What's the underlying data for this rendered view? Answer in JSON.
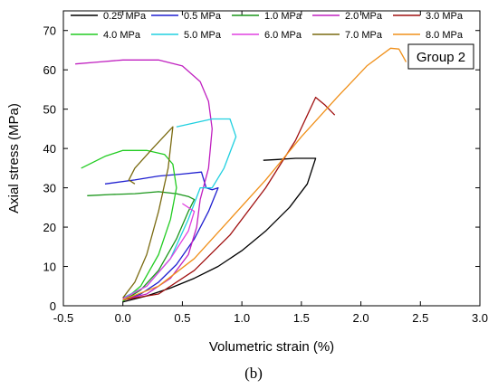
{
  "chart_data": {
    "type": "line",
    "xlabel": "Volumetric strain (%)",
    "ylabel": "Axial stress (MPa)",
    "xlim": [
      -0.5,
      3.0
    ],
    "ylim": [
      0,
      75
    ],
    "xticks": [
      "-0.5",
      "0.0",
      "0.5",
      "1.0",
      "1.5",
      "2.0",
      "2.5",
      "3.0"
    ],
    "yticks": [
      "0",
      "10",
      "20",
      "30",
      "40",
      "50",
      "60",
      "70"
    ],
    "annotation": "Group 2",
    "caption": "(b)",
    "legend_position": "top",
    "grid": false,
    "series": [
      {
        "name": "0.25 MPa",
        "color": "#000000",
        "points": [
          [
            0.0,
            1.0
          ],
          [
            0.2,
            2.5
          ],
          [
            0.4,
            4.5
          ],
          [
            0.6,
            7.0
          ],
          [
            0.8,
            10.0
          ],
          [
            1.0,
            14.0
          ],
          [
            1.2,
            19.0
          ],
          [
            1.4,
            25.0
          ],
          [
            1.55,
            31.0
          ],
          [
            1.62,
            37.5
          ],
          [
            1.45,
            37.5
          ],
          [
            1.3,
            37.2
          ],
          [
            1.18,
            37.0
          ]
        ]
      },
      {
        "name": "0.5 MPa",
        "color": "#1f1fd0",
        "points": [
          [
            0.0,
            1.5
          ],
          [
            0.15,
            3.0
          ],
          [
            0.3,
            6.0
          ],
          [
            0.45,
            10.5
          ],
          [
            0.6,
            17.0
          ],
          [
            0.72,
            24.0
          ],
          [
            0.8,
            30.0
          ],
          [
            0.75,
            29.5
          ],
          [
            0.7,
            30.0
          ],
          [
            0.68,
            32.0
          ],
          [
            0.66,
            34.0
          ],
          [
            0.5,
            33.5
          ],
          [
            0.3,
            33.0
          ],
          [
            0.1,
            32.0
          ],
          [
            -0.15,
            31.0
          ]
        ]
      },
      {
        "name": "1.0 MPa",
        "color": "#1a961a",
        "points": [
          [
            0.0,
            1.2
          ],
          [
            0.15,
            4.0
          ],
          [
            0.3,
            9.0
          ],
          [
            0.45,
            17.0
          ],
          [
            0.55,
            24.0
          ],
          [
            0.6,
            27.0
          ],
          [
            0.55,
            27.8
          ],
          [
            0.45,
            28.5
          ],
          [
            0.3,
            29.0
          ],
          [
            0.1,
            28.5
          ],
          [
            -0.1,
            28.3
          ],
          [
            -0.3,
            28.0
          ]
        ]
      },
      {
        "name": "2.0 MPa",
        "color": "#c020c0",
        "points": [
          [
            0.0,
            1.5
          ],
          [
            0.2,
            3.0
          ],
          [
            0.4,
            7.0
          ],
          [
            0.55,
            13.0
          ],
          [
            0.62,
            20.0
          ],
          [
            0.65,
            27.0
          ],
          [
            0.72,
            35.0
          ],
          [
            0.75,
            45.0
          ],
          [
            0.72,
            52.0
          ],
          [
            0.65,
            57.0
          ],
          [
            0.5,
            61.0
          ],
          [
            0.3,
            62.5
          ],
          [
            0.0,
            62.5
          ],
          [
            -0.2,
            62.0
          ],
          [
            -0.4,
            61.5
          ]
        ]
      },
      {
        "name": "3.0 MPa",
        "color": "#a01010",
        "points": [
          [
            0.0,
            1.5
          ],
          [
            0.3,
            3.0
          ],
          [
            0.6,
            9.0
          ],
          [
            0.9,
            18.0
          ],
          [
            1.2,
            30.0
          ],
          [
            1.45,
            42.0
          ],
          [
            1.62,
            53.0
          ],
          [
            1.7,
            51.0
          ],
          [
            1.78,
            48.5
          ]
        ]
      },
      {
        "name": "4.0 MPa",
        "color": "#22cc22",
        "points": [
          [
            0.0,
            1.2
          ],
          [
            0.15,
            5.0
          ],
          [
            0.3,
            13.0
          ],
          [
            0.4,
            22.0
          ],
          [
            0.45,
            30.0
          ],
          [
            0.42,
            36.0
          ],
          [
            0.35,
            38.5
          ],
          [
            0.2,
            39.5
          ],
          [
            0.0,
            39.5
          ],
          [
            -0.15,
            38.0
          ],
          [
            -0.35,
            35.0
          ]
        ]
      },
      {
        "name": "5.0 MPa",
        "color": "#20d0e0",
        "points": [
          [
            0.0,
            2.0
          ],
          [
            0.2,
            5.0
          ],
          [
            0.4,
            12.0
          ],
          [
            0.55,
            22.0
          ],
          [
            0.65,
            30.0
          ],
          [
            0.75,
            30.0
          ],
          [
            0.85,
            35.0
          ],
          [
            0.95,
            43.0
          ],
          [
            0.9,
            47.5
          ],
          [
            0.75,
            47.5
          ],
          [
            0.6,
            46.5
          ],
          [
            0.45,
            45.5
          ]
        ]
      },
      {
        "name": "6.0 MPa",
        "color": "#e040e0",
        "points": [
          [
            0.0,
            1.8
          ],
          [
            0.2,
            5.0
          ],
          [
            0.4,
            12.0
          ],
          [
            0.55,
            19.0
          ],
          [
            0.6,
            24.0
          ],
          [
            0.5,
            26.0
          ]
        ]
      },
      {
        "name": "7.0 MPa",
        "color": "#7a6a10",
        "points": [
          [
            0.0,
            2.0
          ],
          [
            0.1,
            6.0
          ],
          [
            0.2,
            13.0
          ],
          [
            0.3,
            24.0
          ],
          [
            0.38,
            35.0
          ],
          [
            0.42,
            45.5
          ],
          [
            0.25,
            40.0
          ],
          [
            0.1,
            35.0
          ],
          [
            0.05,
            32.0
          ],
          [
            0.1,
            31.0
          ]
        ]
      },
      {
        "name": "8.0 MPa",
        "color": "#f0901a",
        "points": [
          [
            0.0,
            1.5
          ],
          [
            0.3,
            5.0
          ],
          [
            0.6,
            12.0
          ],
          [
            0.9,
            22.0
          ],
          [
            1.2,
            32.0
          ],
          [
            1.5,
            43.0
          ],
          [
            1.8,
            53.0
          ],
          [
            2.05,
            61.0
          ],
          [
            2.25,
            65.5
          ],
          [
            2.32,
            65.3
          ],
          [
            2.38,
            62.0
          ]
        ]
      }
    ]
  }
}
